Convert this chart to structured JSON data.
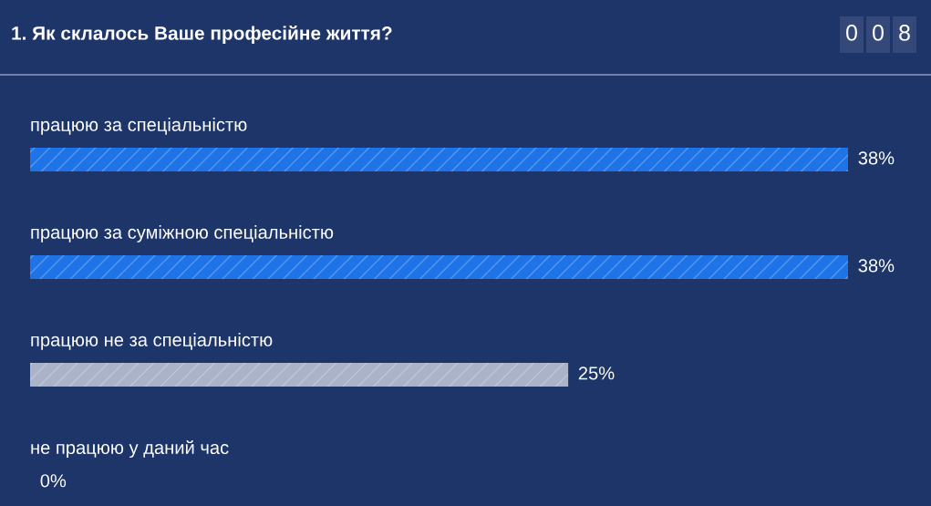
{
  "chart_data": {
    "type": "bar",
    "orientation": "horizontal",
    "title": "1. Як склалось Ваше професійне життя?",
    "categories": [
      "працюю за спеціальністю",
      "працюю за суміжною спеціальністю",
      "працюю не за спеціальністю",
      "не працюю у даний час"
    ],
    "values": [
      38,
      38,
      25,
      0
    ],
    "colors": [
      "#1e74e6",
      "#1e74e6",
      "#aab3c7",
      "#aab3c7"
    ],
    "value_labels": [
      "38%",
      "38%",
      "25%",
      "0%"
    ],
    "annotations": [
      "008"
    ],
    "tick_labels": false
  }
}
